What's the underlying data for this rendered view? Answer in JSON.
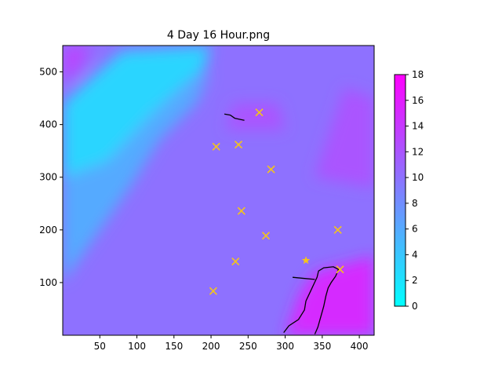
{
  "chart_data": {
    "type": "heatmap",
    "title": "4 Day 16 Hour.png",
    "xlabel": "",
    "ylabel": "",
    "xlim": [
      0,
      420
    ],
    "ylim": [
      0,
      550
    ],
    "x_ticks": [
      "50",
      "100",
      "150",
      "200",
      "250",
      "300",
      "350",
      "400"
    ],
    "x_tick_values": [
      50,
      100,
      150,
      200,
      250,
      300,
      350,
      400
    ],
    "y_ticks": [
      "100",
      "200",
      "300",
      "400",
      "500"
    ],
    "y_tick_values": [
      100,
      200,
      300,
      400,
      500
    ],
    "colorbar": {
      "min": 0,
      "max": 18,
      "ticks": [
        "0",
        "2",
        "4",
        "6",
        "8",
        "10",
        "12",
        "14",
        "16",
        "18"
      ],
      "tick_values": [
        0,
        2,
        4,
        6,
        8,
        10,
        12,
        14,
        16,
        18
      ],
      "colormap": "cool",
      "color_min": "#00ffff",
      "color_max": "#ff00ff"
    },
    "field": {
      "base_value": 10,
      "regions": [
        {
          "name": "cyan-band-northwest",
          "points": [
            [
              0,
              260
            ],
            [
              0,
              440
            ],
            [
              80,
              540
            ],
            [
              200,
              550
            ],
            [
              190,
              500
            ],
            [
              120,
              420
            ],
            [
              60,
              330
            ]
          ],
          "value": 3
        },
        {
          "name": "light-blue-west",
          "points": [
            [
              0,
              100
            ],
            [
              0,
              300
            ],
            [
              60,
              330
            ],
            [
              120,
              420
            ],
            [
              200,
              500
            ],
            [
              180,
              440
            ],
            [
              130,
              370
            ],
            [
              90,
              280
            ],
            [
              40,
              180
            ]
          ],
          "value": 6
        },
        {
          "name": "magenta-southeast",
          "points": [
            [
              300,
              0
            ],
            [
              420,
              0
            ],
            [
              420,
              150
            ],
            [
              380,
              135
            ],
            [
              340,
              120
            ],
            [
              320,
              80
            ]
          ],
          "value": 15
        },
        {
          "name": "purple-northwest-corner",
          "points": [
            [
              0,
              480
            ],
            [
              0,
              550
            ],
            [
              40,
              550
            ],
            [
              20,
              500
            ]
          ],
          "value": 13
        },
        {
          "name": "purple-east-band",
          "points": [
            [
              340,
              300
            ],
            [
              420,
              280
            ],
            [
              420,
              450
            ],
            [
              380,
              470
            ]
          ],
          "value": 12
        },
        {
          "name": "purple-central-north",
          "points": [
            [
              220,
              390
            ],
            [
              300,
              390
            ],
            [
              290,
              440
            ],
            [
              230,
              440
            ]
          ],
          "value": 12
        }
      ]
    },
    "x_markers": [
      {
        "x": 265,
        "y": 423
      },
      {
        "x": 207,
        "y": 358
      },
      {
        "x": 237,
        "y": 362
      },
      {
        "x": 281,
        "y": 315
      },
      {
        "x": 241,
        "y": 236
      },
      {
        "x": 274,
        "y": 189
      },
      {
        "x": 371,
        "y": 200
      },
      {
        "x": 233,
        "y": 140
      },
      {
        "x": 203,
        "y": 84
      },
      {
        "x": 374,
        "y": 125
      }
    ],
    "star_markers": [
      {
        "x": 328,
        "y": 142
      }
    ],
    "marker_color": "#f5c518",
    "coastlines": [
      {
        "points": [
          [
            298,
            5
          ],
          [
            305,
            18
          ],
          [
            318,
            30
          ],
          [
            326,
            48
          ],
          [
            328,
            65
          ],
          [
            333,
            80
          ],
          [
            338,
            95
          ],
          [
            343,
            110
          ],
          [
            345,
            122
          ],
          [
            352,
            128
          ],
          [
            365,
            130
          ],
          [
            372,
            125
          ],
          [
            368,
            112
          ],
          [
            362,
            100
          ],
          [
            358,
            90
          ],
          [
            355,
            75
          ],
          [
            352,
            55
          ],
          [
            348,
            35
          ],
          [
            344,
            15
          ],
          [
            340,
            2
          ]
        ]
      },
      {
        "points": [
          [
            310,
            110
          ],
          [
            325,
            108
          ],
          [
            340,
            106
          ]
        ]
      },
      {
        "points": [
          [
            218,
            420
          ],
          [
            226,
            418
          ],
          [
            232,
            412
          ],
          [
            245,
            408
          ]
        ]
      }
    ]
  }
}
